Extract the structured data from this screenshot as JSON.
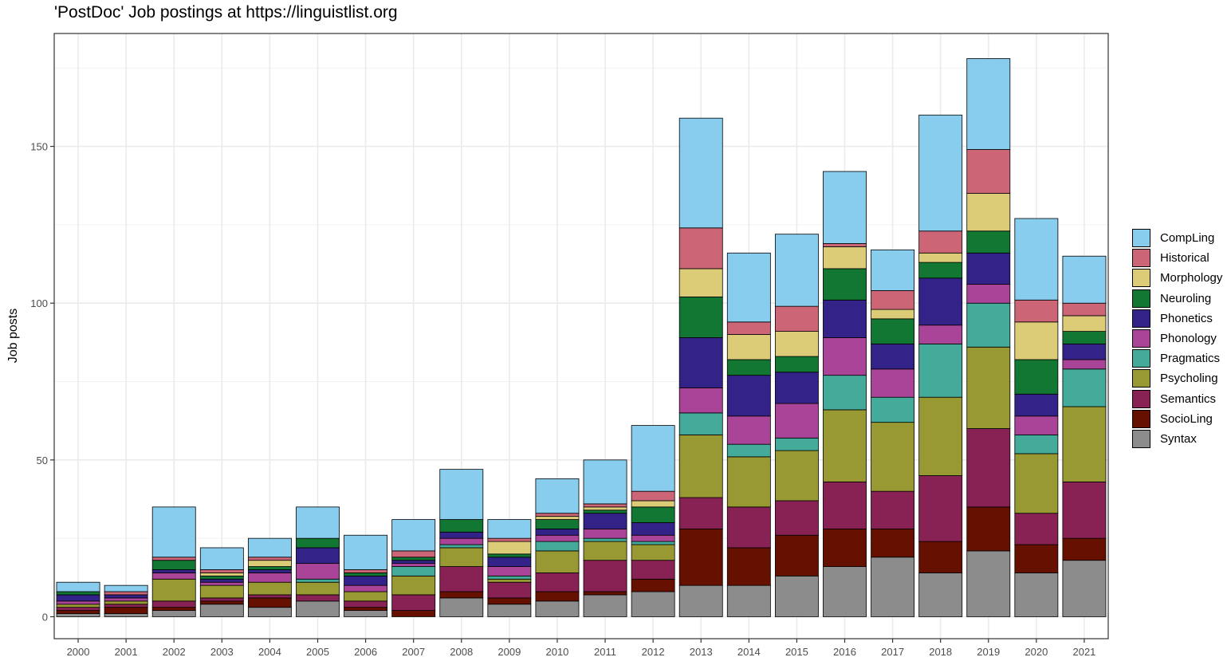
{
  "chart_data": {
    "type": "bar",
    "stacked": true,
    "title": "'PostDoc' Job postings at https://linguistlist.org",
    "xlabel": "",
    "ylabel": "Job posts",
    "ylim": [
      -7,
      186
    ],
    "yticks": [
      0,
      50,
      100,
      150
    ],
    "grid": true,
    "legend_position": "right",
    "categories": [
      "2000",
      "2001",
      "2002",
      "2003",
      "2004",
      "2005",
      "2006",
      "2007",
      "2008",
      "2009",
      "2010",
      "2011",
      "2012",
      "2013",
      "2014",
      "2015",
      "2016",
      "2017",
      "2018",
      "2019",
      "2020",
      "2021"
    ],
    "series": [
      {
        "name": "Syntax",
        "color": "#8c8c8c",
        "values": [
          1,
          1,
          2,
          4,
          3,
          5,
          2,
          0,
          6,
          4,
          5,
          7,
          8,
          10,
          10,
          13,
          16,
          19,
          14,
          21,
          14,
          18
        ]
      },
      {
        "name": "SocioLing",
        "color": "#661100",
        "values": [
          1,
          2,
          1,
          1,
          3,
          0,
          1,
          2,
          2,
          2,
          3,
          1,
          4,
          18,
          12,
          13,
          12,
          9,
          10,
          14,
          9,
          7
        ]
      },
      {
        "name": "Semantics",
        "color": "#882255",
        "values": [
          1,
          1,
          2,
          1,
          1,
          2,
          2,
          5,
          8,
          5,
          6,
          10,
          6,
          10,
          13,
          11,
          15,
          12,
          21,
          25,
          10,
          18
        ]
      },
      {
        "name": "Psycholing",
        "color": "#999933",
        "values": [
          1,
          1,
          7,
          4,
          4,
          4,
          3,
          6,
          6,
          1,
          7,
          6,
          5,
          20,
          16,
          16,
          23,
          22,
          25,
          26,
          19,
          24
        ]
      },
      {
        "name": "Pragmatics",
        "color": "#44aa99",
        "values": [
          0,
          0,
          0,
          0,
          0,
          1,
          0,
          3,
          1,
          1,
          3,
          1,
          1,
          7,
          4,
          4,
          11,
          8,
          17,
          14,
          6,
          12
        ]
      },
      {
        "name": "Phonology",
        "color": "#aa4499",
        "values": [
          1,
          1,
          2,
          1,
          3,
          5,
          2,
          1,
          2,
          3,
          2,
          3,
          2,
          8,
          9,
          11,
          12,
          9,
          6,
          6,
          6,
          3
        ]
      },
      {
        "name": "Phonetics",
        "color": "#332288",
        "values": [
          2,
          1,
          1,
          1,
          1,
          5,
          3,
          1,
          2,
          3,
          2,
          5,
          4,
          16,
          13,
          10,
          12,
          8,
          15,
          10,
          7,
          5
        ]
      },
      {
        "name": "Neuroling",
        "color": "#117733",
        "values": [
          1,
          0,
          3,
          1,
          1,
          3,
          1,
          1,
          4,
          1,
          3,
          1,
          5,
          13,
          5,
          5,
          10,
          8,
          5,
          7,
          11,
          4
        ]
      },
      {
        "name": "Morphology",
        "color": "#ddcc77",
        "values": [
          0,
          0,
          0,
          1,
          2,
          0,
          0,
          0,
          0,
          4,
          1,
          1,
          2,
          9,
          8,
          8,
          7,
          3,
          3,
          12,
          12,
          5
        ]
      },
      {
        "name": "Historical",
        "color": "#cc6677",
        "values": [
          0,
          1,
          1,
          1,
          1,
          0,
          1,
          2,
          0,
          1,
          1,
          1,
          3,
          13,
          4,
          8,
          1,
          6,
          7,
          14,
          7,
          4
        ]
      },
      {
        "name": "CompLing",
        "color": "#88ccee",
        "values": [
          3,
          2,
          16,
          7,
          6,
          10,
          11,
          10,
          16,
          6,
          11,
          14,
          21,
          35,
          22,
          23,
          23,
          13,
          37,
          29,
          26,
          15
        ]
      }
    ],
    "legend_order": [
      "CompLing",
      "Historical",
      "Morphology",
      "Neuroling",
      "Phonetics",
      "Phonology",
      "Pragmatics",
      "Psycholing",
      "Semantics",
      "SocioLing",
      "Syntax"
    ]
  }
}
